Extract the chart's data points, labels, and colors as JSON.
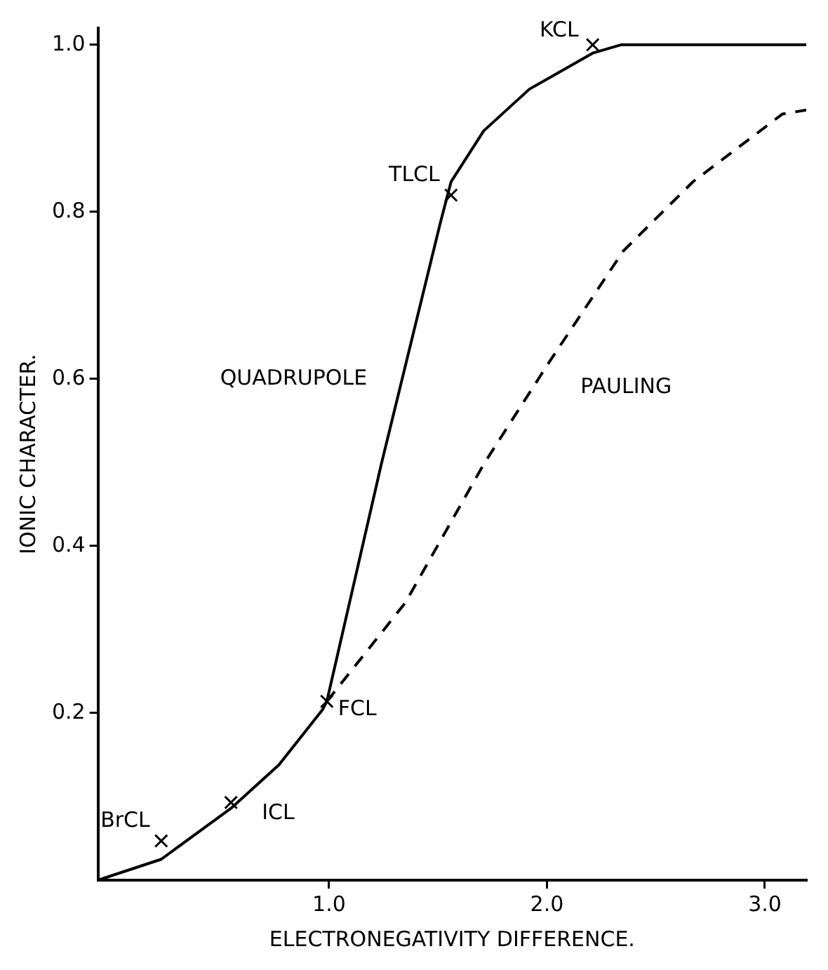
{
  "chart_data": {
    "type": "line",
    "xlabel": "ELECTRONEGATIVITY DIFFERENCE.",
    "ylabel": "IONIC CHARACTER.",
    "xlim": [
      -0.06,
      3.19
    ],
    "ylim": [
      0,
      1.02
    ],
    "xticks": [
      {
        "value": 1,
        "label": "1.0"
      },
      {
        "value": 2,
        "label": "2.0"
      },
      {
        "value": 3,
        "label": "3.0"
      }
    ],
    "yticks": [
      0.2,
      0.4,
      0.6,
      0.8,
      {
        "value": 1,
        "label": "1.0"
      }
    ],
    "series": [
      {
        "name": "QUADRUPOLE",
        "color": "#000000",
        "line_style": "solid",
        "x": [
          -0.06,
          0.23,
          0.55,
          0.77,
          0.97,
          0.99,
          1.24,
          1.51,
          1.56,
          1.71,
          1.92,
          2.21,
          2.34,
          3.19
        ],
        "values": [
          0,
          0.025,
          0.086,
          0.138,
          0.204,
          0.214,
          0.498,
          0.786,
          0.836,
          0.897,
          0.947,
          0.99,
          1.0,
          1.0
        ]
      },
      {
        "name": "PAULING",
        "color": "#000000",
        "line_style": "dashed",
        "x": [
          0.99,
          1.35,
          1.71,
          2.01,
          2.35,
          2.67,
          3.08,
          3.19
        ],
        "values": [
          0.214,
          0.332,
          0.498,
          0.62,
          0.753,
          0.836,
          0.917,
          0.922
        ]
      },
      {
        "type": "scatter",
        "marker": "cross",
        "color": "#000000",
        "x": [
          0.23,
          0.55,
          0.99,
          1.56,
          2.21
        ],
        "values": [
          0.047,
          0.093,
          0.214,
          0.82,
          1.0
        ]
      }
    ],
    "annotations": [
      {
        "text": "BrCL",
        "x": 0.23,
        "y": 0.047
      },
      {
        "text": "ICL",
        "x": 0.55,
        "y": 0.093
      },
      {
        "text": "FCL",
        "x": 0.99,
        "y": 0.214
      },
      {
        "text": "TLCL",
        "x": 1.56,
        "y": 0.82
      },
      {
        "text": "KCL",
        "x": 2.21,
        "y": 1.0
      }
    ]
  }
}
